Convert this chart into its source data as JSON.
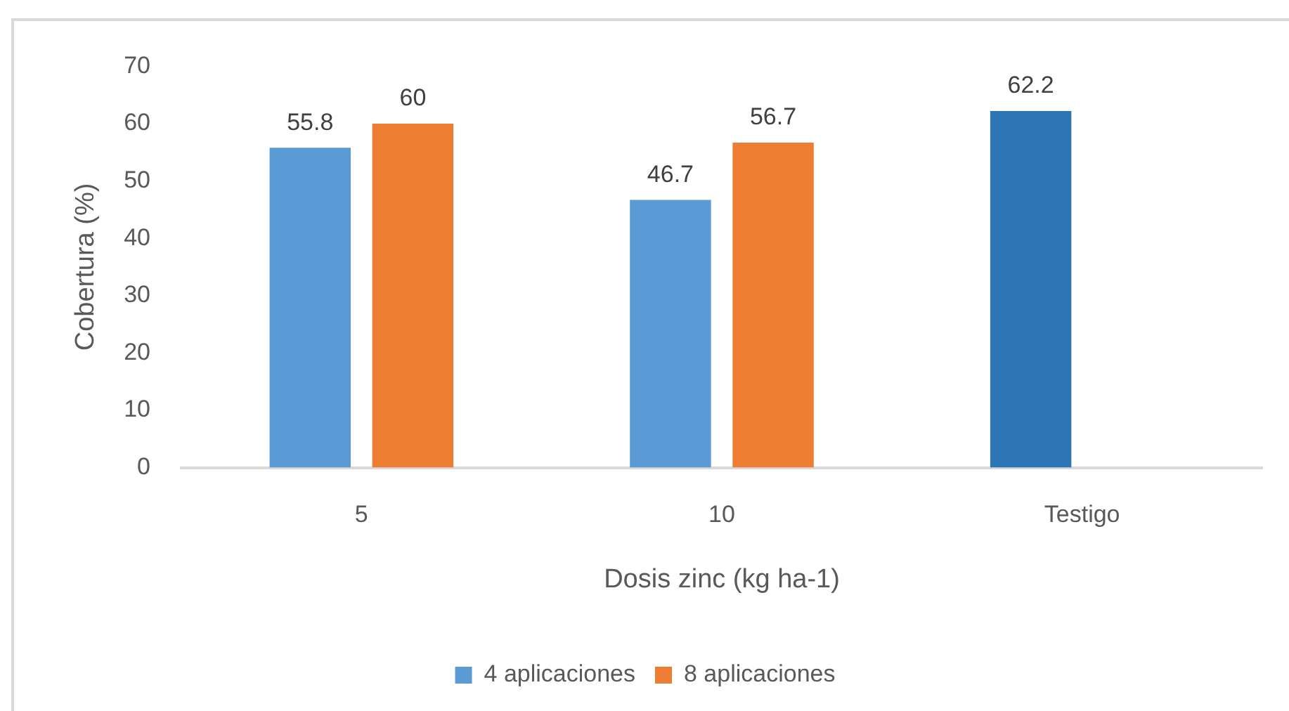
{
  "chart_data": {
    "type": "bar",
    "xlabel": "Dosis zinc (kg ha-1)",
    "ylabel": "Cobertura (%)",
    "categories": [
      "5",
      "10",
      "Testigo"
    ],
    "series": [
      {
        "name": "4 aplicaciones",
        "color": "#5b9bd5",
        "colors": [
          "#5b9bd5",
          "#5b9bd5",
          "#2e75b6"
        ],
        "values": [
          55.8,
          46.7,
          62.2
        ]
      },
      {
        "name": "8 aplicaciones",
        "color": "#ed7d31",
        "values": [
          60,
          56.7,
          null
        ]
      }
    ],
    "ylim": [
      0,
      70
    ],
    "yticks": [
      0,
      10,
      20,
      30,
      40,
      50,
      60,
      70
    ],
    "data_labels": true,
    "legend": "bottom",
    "grid": false
  }
}
